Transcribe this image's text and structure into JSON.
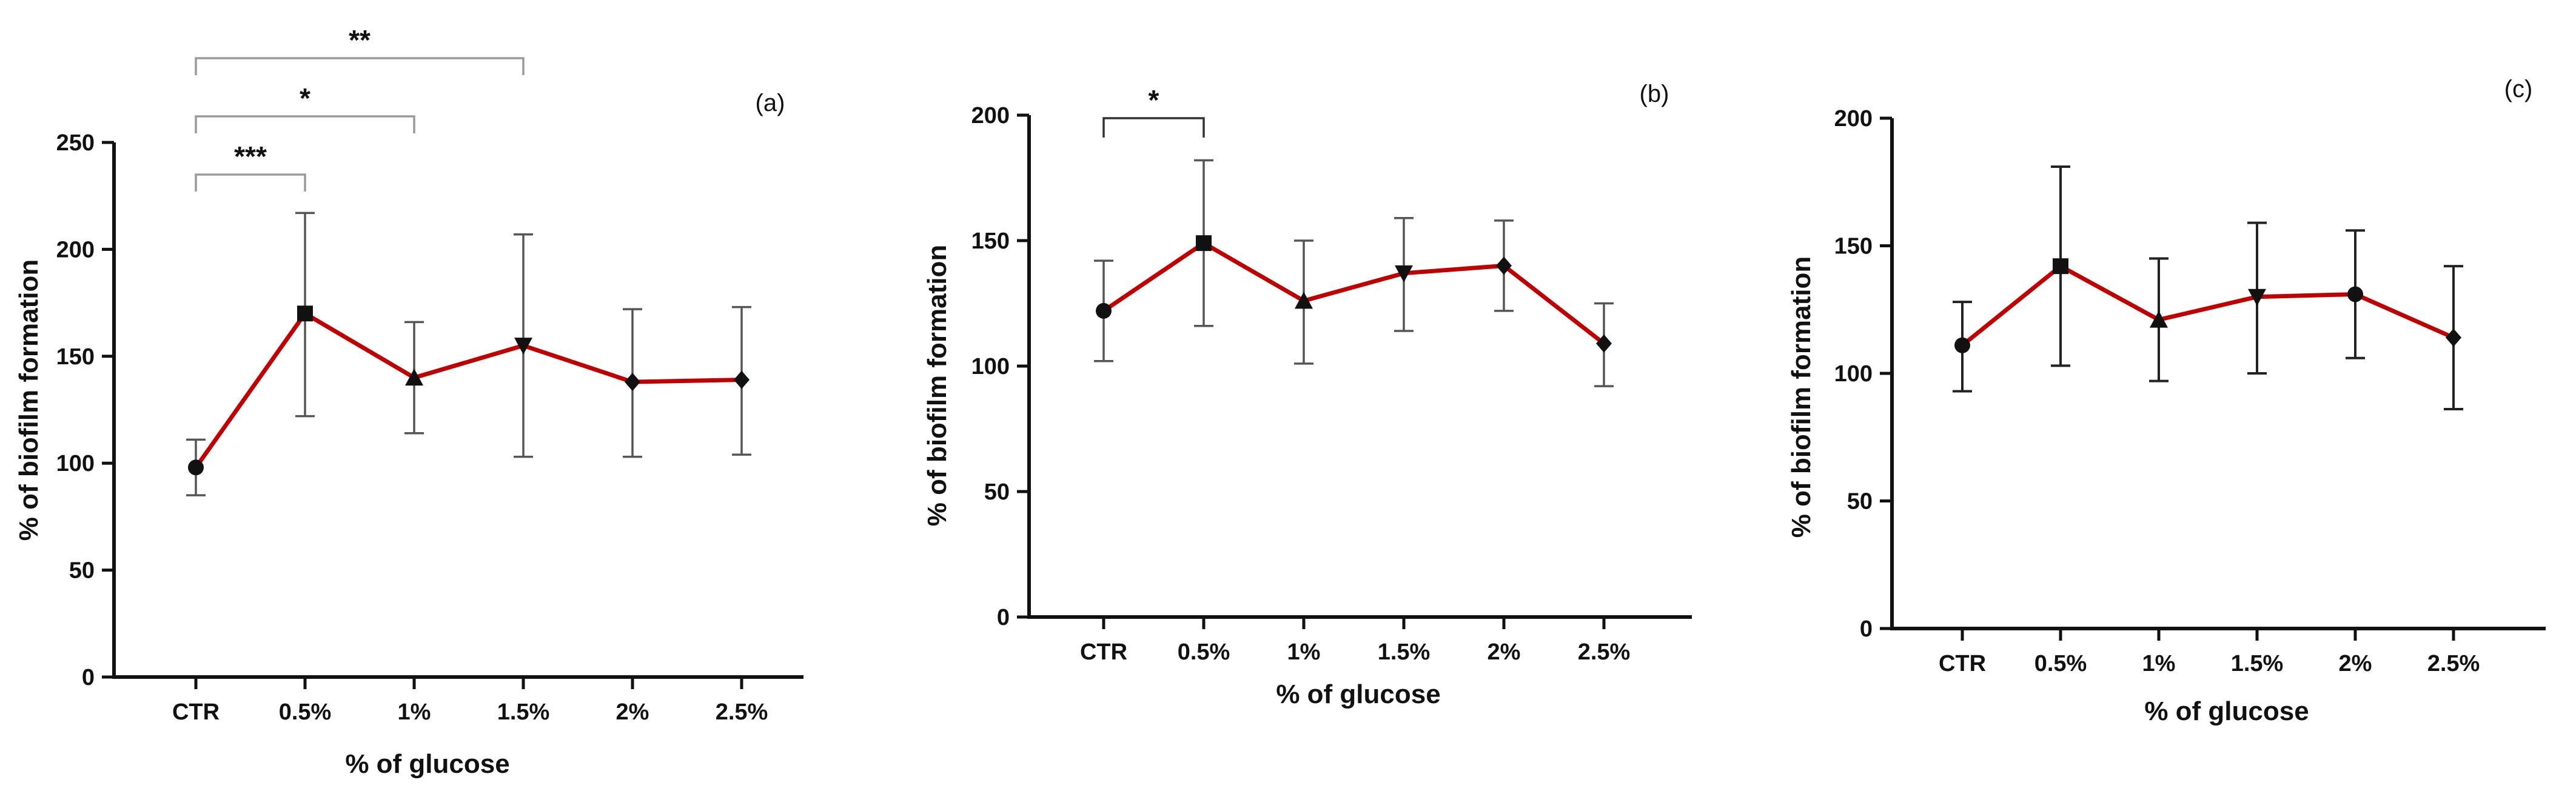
{
  "chart_data": [
    {
      "id": "a",
      "type": "line",
      "panel_label": "(a)",
      "xlabel": "% of glucose",
      "ylabel": "% of biofilm formation",
      "categories": [
        "CTR",
        "0.5%",
        "1%",
        "1.5%",
        "2%",
        "2.5%"
      ],
      "markers": [
        "circle",
        "square",
        "triangle-up",
        "triangle-down",
        "diamond",
        "diamond"
      ],
      "ylim": [
        0,
        250
      ],
      "yticks": [
        0,
        50,
        100,
        150,
        200,
        250
      ],
      "values": [
        98,
        170,
        140,
        155,
        138,
        139
      ],
      "err_low": [
        85,
        122,
        114,
        103,
        103,
        104
      ],
      "err_high": [
        111,
        217,
        166,
        207,
        172,
        173
      ],
      "significance": [
        {
          "from": 0,
          "to": 1,
          "label": "***"
        },
        {
          "from": 0,
          "to": 2,
          "label": "*"
        },
        {
          "from": 0,
          "to": 3,
          "label": "**"
        }
      ]
    },
    {
      "id": "b",
      "type": "line",
      "panel_label": "(b)",
      "xlabel": "% of glucose",
      "ylabel": "% of biofilm formation",
      "categories": [
        "CTR",
        "0.5%",
        "1%",
        "1.5%",
        "2%",
        "2.5%"
      ],
      "markers": [
        "circle",
        "square",
        "triangle-up",
        "triangle-down",
        "diamond",
        "diamond"
      ],
      "ylim": [
        0,
        200
      ],
      "yticks": [
        0,
        50,
        100,
        150,
        200
      ],
      "values": [
        122,
        149,
        126,
        137,
        140,
        109
      ],
      "err_low": [
        102,
        116,
        101,
        114,
        122,
        92
      ],
      "err_high": [
        142,
        182,
        150,
        159,
        158,
        125
      ],
      "significance": [
        {
          "from": 0,
          "to": 1,
          "label": "*"
        }
      ]
    },
    {
      "id": "c",
      "type": "line",
      "panel_label": "(c)",
      "xlabel": "% of glucose",
      "ylabel": "% of biofilm formation",
      "categories": [
        "CTR",
        "0.5%",
        "1%",
        "1.5%",
        "2%",
        "2.5%"
      ],
      "markers": [
        "circle",
        "square",
        "triangle-up",
        "triangle-down",
        "circle",
        "diamond"
      ],
      "ylim": [
        0,
        200
      ],
      "yticks": [
        0,
        50,
        100,
        150,
        200
      ],
      "values": [
        111,
        142,
        121,
        130,
        131,
        114
      ],
      "err_low": [
        93,
        103,
        97,
        100,
        106,
        86
      ],
      "err_high": [
        128,
        181,
        145,
        159,
        156,
        142
      ],
      "significance": []
    }
  ]
}
